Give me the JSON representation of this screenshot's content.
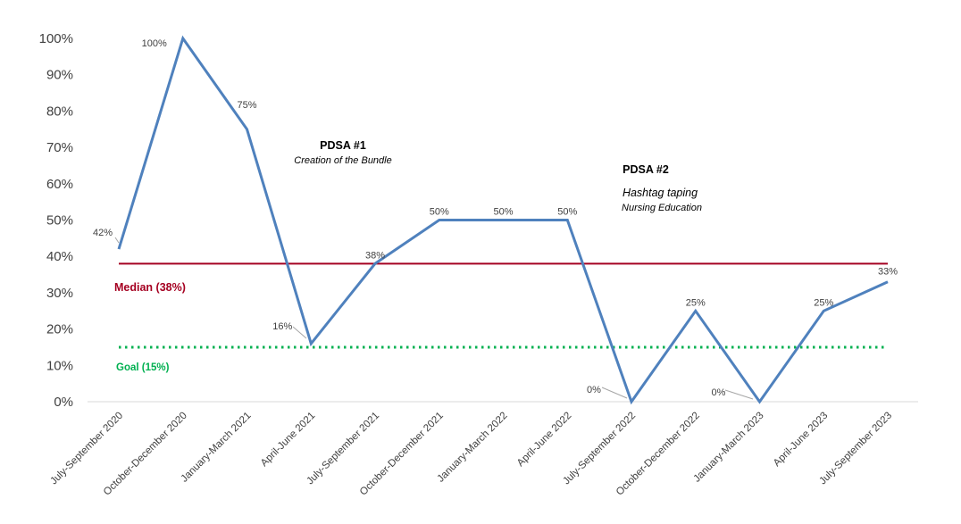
{
  "chart_data": {
    "type": "line",
    "categories": [
      "July-September 2020",
      "October-December 2020",
      "January-March 2021",
      "April-June 2021",
      "July-September 2021",
      "October-December 2021",
      "January-March 2022",
      "April-June 2022",
      "July-September 2022",
      "October-December 2022",
      "January-March 2023",
      "April-June 2023",
      "July-September 2023"
    ],
    "series": [
      {
        "values": [
          42,
          100,
          75,
          16,
          38,
          50,
          50,
          50,
          0,
          25,
          0,
          25,
          33
        ],
        "color": "#4f81bd"
      }
    ],
    "data_labels": [
      "42%",
      "100%",
      "75%",
      "16%",
      "38%",
      "50%",
      "50%",
      "50%",
      "0%",
      "25%",
      "0%",
      "25%",
      "33%"
    ],
    "ylim": [
      0,
      100
    ],
    "yticks": [
      "0%",
      "10%",
      "20%",
      "30%",
      "40%",
      "50%",
      "60%",
      "70%",
      "80%",
      "90%",
      "100%"
    ],
    "grid": false,
    "reference_lines": [
      {
        "label": "Median (38%)",
        "value": 38,
        "color": "#a50021",
        "style": "solid"
      },
      {
        "label": "Goal (15%)",
        "value": 15,
        "color": "#00b050",
        "style": "dotted"
      }
    ],
    "annotations": [
      {
        "title": "PDSA #1",
        "lines": [
          "Creation of the Bundle"
        ]
      },
      {
        "title": "PDSA #2",
        "lines": [
          "Hashtag taping",
          "Nursing Education"
        ]
      }
    ]
  }
}
